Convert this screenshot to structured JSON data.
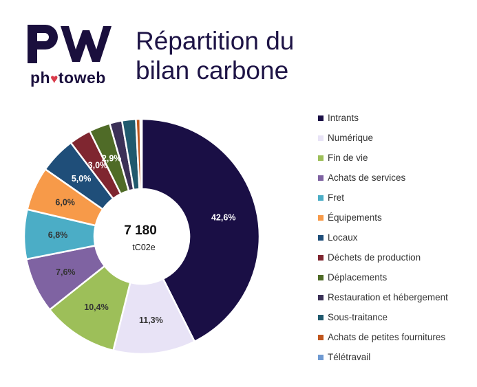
{
  "logo": {
    "text_before": "ph",
    "text_after": "toweb",
    "heart_color": "#d93a4a",
    "mark_color": "#1a0f3d"
  },
  "title": {
    "line1": "Répartition du",
    "line2": "bilan carbone"
  },
  "chart_data": {
    "type": "pie",
    "donut": true,
    "center_value": "7 180",
    "center_unit": "tC02e",
    "legend_position": "right",
    "slices": [
      {
        "name": "Intrants",
        "value": 42.6,
        "label": "42,6%",
        "color": "#1a0f45",
        "label_color": "#ffffff"
      },
      {
        "name": "Numérique",
        "value": 11.3,
        "label": "11,3%",
        "color": "#e8e3f6",
        "label_color": "#333333"
      },
      {
        "name": "Fin de vie",
        "value": 10.4,
        "label": "10,4%",
        "color": "#9dbf59",
        "label_color": "#333333"
      },
      {
        "name": "Achats de services",
        "value": 7.6,
        "label": "7,6%",
        "color": "#7f63a2",
        "label_color": "#333333"
      },
      {
        "name": "Fret",
        "value": 6.8,
        "label": "6,8%",
        "color": "#4badc6",
        "label_color": "#333333"
      },
      {
        "name": "Équipements",
        "value": 6.0,
        "label": "6,0%",
        "color": "#f79a49",
        "label_color": "#333333"
      },
      {
        "name": "Locaux",
        "value": 5.0,
        "label": "5,0%",
        "color": "#1f4e79",
        "label_color": "#ffffff"
      },
      {
        "name": "Déchets de production",
        "value": 3.0,
        "label": "3,0%",
        "color": "#7f2630",
        "label_color": "#ffffff"
      },
      {
        "name": "Déplacements",
        "value": 2.9,
        "label": "2,9%",
        "color": "#4f6b27",
        "label_color": "#ffffff"
      },
      {
        "name": "Restauration et hébergement",
        "value": 1.7,
        "label": "",
        "color": "#3b3157",
        "label_color": "#ffffff"
      },
      {
        "name": "Sous-traitance",
        "value": 1.9,
        "label": "",
        "color": "#215a6e",
        "label_color": "#ffffff"
      },
      {
        "name": "Achats de petites fournitures",
        "value": 0.6,
        "label": "",
        "color": "#c0561d",
        "label_color": "#ffffff"
      },
      {
        "name": "Télétravail",
        "value": 0.2,
        "label": "",
        "color": "#6f9ad2",
        "label_color": "#ffffff"
      }
    ]
  }
}
